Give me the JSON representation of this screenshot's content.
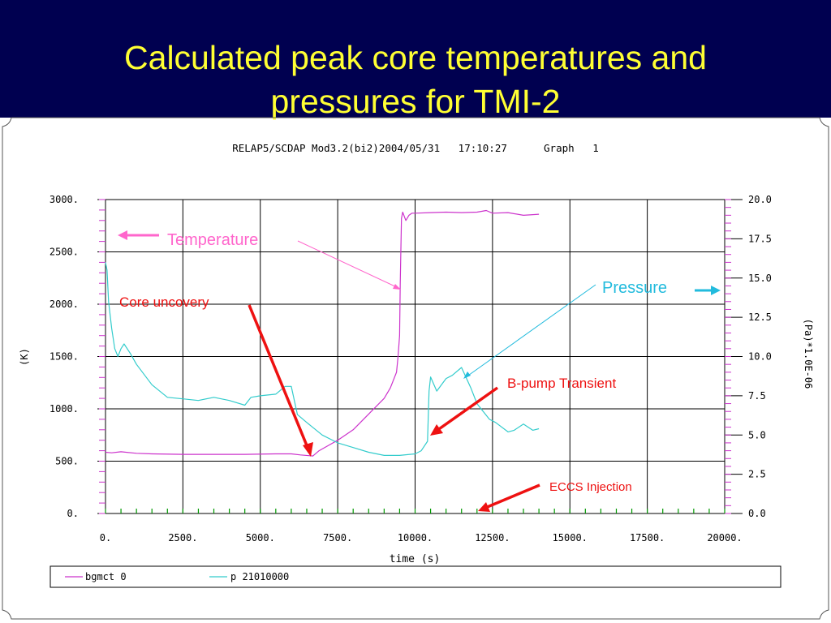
{
  "slide": {
    "title_line_1": "Calculated peak core temperatures and",
    "title_line_2": "pressures for TMI-2",
    "header_color": "#000050",
    "title_color": "#ffff33"
  },
  "chart_data": {
    "type": "line",
    "header": "RELAP5/SCDAP Mod3.2(bi2)2004/05/31   17:10:27      Graph   1",
    "xlabel": "time (s)",
    "ylabel_left": "(K)",
    "ylabel_right": "(Pa)*1.0E-06",
    "xlim": [
      0,
      20000
    ],
    "ylim_left": [
      0,
      3000
    ],
    "ylim_right": [
      0,
      20
    ],
    "x_ticks": [
      "0.",
      "2500.",
      "5000.",
      "7500.",
      "10000.",
      "12500.",
      "15000.",
      "17500.",
      "20000."
    ],
    "y_ticks_left": [
      "0.",
      "500.",
      "1000.",
      "1500.",
      "2000.",
      "2500.",
      "3000."
    ],
    "y_ticks_right": [
      "0.0",
      "2.5",
      "5.0",
      "7.5",
      "10.0",
      "12.5",
      "15.0",
      "17.5",
      "20.0"
    ],
    "grid": true,
    "legend_position": "bottom",
    "series": [
      {
        "name": "bgmct 0",
        "axis": "left",
        "color": "#cc33cc",
        "x": [
          0,
          200,
          500,
          1000,
          1500,
          2500,
          3500,
          4500,
          5500,
          6000,
          6300,
          6700,
          6900,
          7200,
          7500,
          8000,
          8500,
          9000,
          9200,
          9400,
          9450,
          9500,
          9520,
          9560,
          9600,
          9700,
          9800,
          9900,
          10000,
          10500,
          11000,
          11500,
          12000,
          12300,
          12500,
          13000,
          13500,
          14000
        ],
        "values": [
          585,
          580,
          590,
          575,
          570,
          565,
          565,
          565,
          570,
          570,
          560,
          550,
          600,
          650,
          700,
          800,
          950,
          1100,
          1200,
          1350,
          1500,
          1700,
          2200,
          2820,
          2880,
          2800,
          2850,
          2870,
          2870,
          2875,
          2880,
          2875,
          2880,
          2895,
          2870,
          2875,
          2850,
          2860
        ]
      },
      {
        "name": "p 21010000",
        "axis": "right",
        "color": "#33cccc",
        "x": [
          0,
          50,
          100,
          200,
          300,
          400,
          500,
          600,
          800,
          1000,
          1500,
          2000,
          2500,
          3000,
          3500,
          4000,
          4500,
          4700,
          5000,
          5500,
          5800,
          6000,
          6200,
          6500,
          7000,
          7500,
          8000,
          8500,
          9000,
          9500,
          10000,
          10200,
          10400,
          10450,
          10500,
          10700,
          11000,
          11200,
          11500,
          11800,
          12000,
          12200,
          12400,
          12600,
          13000,
          13200,
          13500,
          13800,
          14000
        ],
        "values": [
          16.0,
          15.5,
          13.5,
          11.8,
          10.5,
          10.0,
          10.5,
          10.8,
          10.2,
          9.5,
          8.2,
          7.4,
          7.3,
          7.2,
          7.4,
          7.2,
          6.9,
          7.4,
          7.5,
          7.6,
          8.1,
          8.1,
          6.3,
          5.8,
          5.0,
          4.5,
          4.2,
          3.9,
          3.7,
          3.7,
          3.8,
          4.0,
          4.6,
          7.8,
          8.7,
          7.8,
          8.6,
          8.8,
          9.3,
          8.0,
          7.0,
          6.5,
          6.0,
          5.8,
          5.2,
          5.3,
          5.7,
          5.3,
          5.4
        ]
      }
    ],
    "eccs_marker_x": [
      0,
      500,
      1000,
      1500,
      2000,
      2500,
      3000,
      3500,
      4000,
      4500,
      5000,
      5500,
      6000,
      6500,
      7000,
      7500,
      8000,
      8500,
      9000,
      9500,
      10000,
      10500,
      11000,
      11500,
      12000,
      12500,
      13000,
      13500,
      14000,
      14500,
      15000,
      15500,
      16000,
      16500,
      17000,
      17500,
      18000,
      18500,
      19000,
      19500,
      20000
    ],
    "eccs_marker_color": "#009900"
  },
  "annotations": {
    "temperature_label": "Temperature",
    "pressure_label": "Pressure",
    "core_uncovery_label": "Core uncovery",
    "bpump_label": "B-pump Transient",
    "eccs_label": "ECCS Injection",
    "temperature_color": "#ff66cc",
    "pressure_color": "#22bbdd",
    "red_color": "#ee1111"
  }
}
